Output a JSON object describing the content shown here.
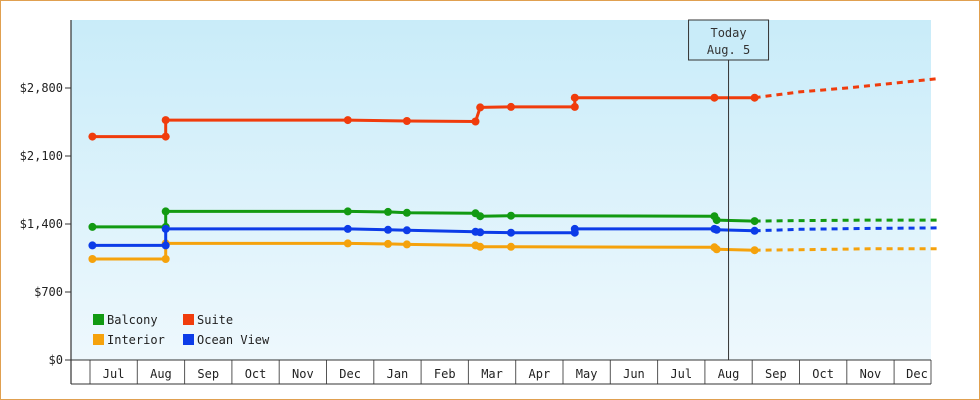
{
  "chart_data": {
    "type": "line",
    "title": "",
    "xlabel": "",
    "ylabel": "",
    "ylim": [
      0,
      3500
    ],
    "y_ticks": [
      {
        "value": 0,
        "label": "$0"
      },
      {
        "value": 700,
        "label": "$700"
      },
      {
        "value": 1400,
        "label": "$1,400"
      },
      {
        "value": 2100,
        "label": "$2,100"
      },
      {
        "value": 2800,
        "label": "$2,800"
      }
    ],
    "month_ticks": [
      "Jul",
      "Aug",
      "Sep",
      "Oct",
      "Nov",
      "Dec",
      "Jan",
      "Feb",
      "Mar",
      "Apr",
      "May",
      "Jun",
      "Jul",
      "Aug",
      "Sep",
      "Oct",
      "Nov",
      "Dec"
    ],
    "today": {
      "line1": "Today",
      "line2": "Aug. 5",
      "month_index": 13.0
    },
    "legend_position": "bottom-left",
    "series": [
      {
        "name": "Balcony",
        "color": "#129a12",
        "points": [
          [
            -0.45,
            1370
          ],
          [
            1.1,
            1370
          ],
          [
            1.1,
            1530
          ],
          [
            4.95,
            1530
          ],
          [
            5.8,
            1525
          ],
          [
            6.2,
            1515
          ],
          [
            7.65,
            1510
          ],
          [
            7.75,
            1480
          ],
          [
            8.4,
            1485
          ],
          [
            12.7,
            1480
          ],
          [
            12.75,
            1440
          ],
          [
            13.55,
            1430
          ]
        ],
        "forecast": [
          [
            13.55,
            1430
          ],
          [
            14.5,
            1435
          ],
          [
            16,
            1440
          ],
          [
            17.4,
            1440
          ]
        ]
      },
      {
        "name": "Suite",
        "color": "#f03c0c",
        "points": [
          [
            -0.45,
            2300
          ],
          [
            1.1,
            2300
          ],
          [
            1.1,
            2470
          ],
          [
            4.95,
            2470
          ],
          [
            6.2,
            2460
          ],
          [
            7.65,
            2455
          ],
          [
            7.75,
            2600
          ],
          [
            8.4,
            2605
          ],
          [
            9.75,
            2605
          ],
          [
            9.75,
            2700
          ],
          [
            12.7,
            2700
          ],
          [
            13.55,
            2700
          ]
        ],
        "forecast": [
          [
            13.55,
            2700
          ],
          [
            14.5,
            2760
          ],
          [
            15.5,
            2800
          ],
          [
            17.4,
            2895
          ]
        ]
      },
      {
        "name": "Interior",
        "color": "#f5a20c",
        "points": [
          [
            -0.45,
            1040
          ],
          [
            1.1,
            1040
          ],
          [
            1.1,
            1200
          ],
          [
            4.95,
            1200
          ],
          [
            5.8,
            1195
          ],
          [
            6.2,
            1190
          ],
          [
            7.65,
            1180
          ],
          [
            7.75,
            1165
          ],
          [
            8.4,
            1165
          ],
          [
            12.7,
            1160
          ],
          [
            12.75,
            1140
          ],
          [
            13.55,
            1130
          ]
        ],
        "forecast": [
          [
            13.55,
            1130
          ],
          [
            14.5,
            1135
          ],
          [
            16,
            1145
          ],
          [
            17.4,
            1145
          ]
        ]
      },
      {
        "name": "Ocean View",
        "color": "#0c3ce8",
        "points": [
          [
            -0.45,
            1180
          ],
          [
            1.1,
            1180
          ],
          [
            1.1,
            1350
          ],
          [
            4.95,
            1350
          ],
          [
            5.8,
            1340
          ],
          [
            6.2,
            1335
          ],
          [
            7.65,
            1320
          ],
          [
            7.75,
            1315
          ],
          [
            8.4,
            1310
          ],
          [
            9.75,
            1310
          ],
          [
            9.75,
            1350
          ],
          [
            12.7,
            1350
          ],
          [
            12.75,
            1340
          ],
          [
            13.55,
            1330
          ]
        ],
        "forecast": [
          [
            13.55,
            1330
          ],
          [
            14.5,
            1345
          ],
          [
            16,
            1355
          ],
          [
            17.4,
            1360
          ]
        ]
      }
    ]
  }
}
